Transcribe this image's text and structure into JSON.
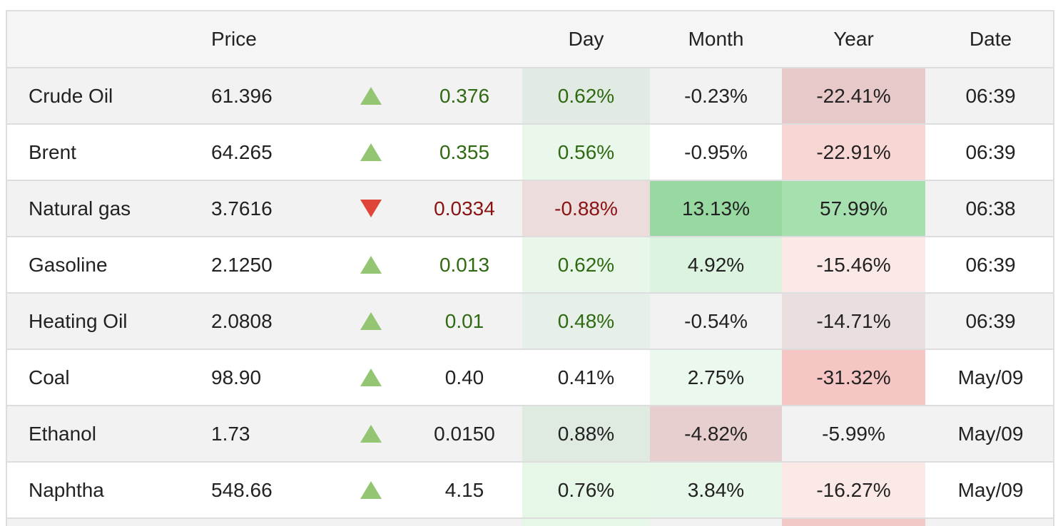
{
  "header": {
    "name": "",
    "price": "Price",
    "arrow": "",
    "change": "",
    "day": "Day",
    "month": "Month",
    "year": "Year",
    "date": "Date"
  },
  "rows": [
    {
      "name": "Crude Oil",
      "price": "61.396",
      "direction": "up",
      "change": "0.376",
      "day": "0.62%",
      "month": "-0.23%",
      "year": "-22.41%",
      "date": "06:39",
      "change_color": "#2f6a12",
      "day_color": "#2f6a12",
      "day_bg": "#e1ebe3",
      "month_bg": "",
      "year_bg": "#e8c9c9"
    },
    {
      "name": "Brent",
      "price": "64.265",
      "direction": "up",
      "change": "0.355",
      "day": "0.56%",
      "month": "-0.95%",
      "year": "-22.91%",
      "date": "06:39",
      "change_color": "#2f6a12",
      "day_color": "#2f6a12",
      "day_bg": "#eaf8ec",
      "month_bg": "",
      "year_bg": "#f8d6d4"
    },
    {
      "name": "Natural gas",
      "price": "3.7616",
      "direction": "down",
      "change": "0.0334",
      "day": "-0.88%",
      "month": "13.13%",
      "year": "57.99%",
      "date": "06:38",
      "change_color": "#8b1212",
      "day_color": "#8b1212",
      "day_bg": "#ecdcdc",
      "month_bg": "#97d9a0",
      "year_bg": "#a6e0ae"
    },
    {
      "name": "Gasoline",
      "price": "2.1250",
      "direction": "up",
      "change": "0.013",
      "day": "0.62%",
      "month": "4.92%",
      "year": "-15.46%",
      "date": "06:39",
      "change_color": "#2f6a12",
      "day_color": "#2f6a12",
      "day_bg": "#e8f7ea",
      "month_bg": "#dcf3df",
      "year_bg": "#fbe9e8"
    },
    {
      "name": "Heating Oil",
      "price": "2.0808",
      "direction": "up",
      "change": "0.01",
      "day": "0.48%",
      "month": "-0.54%",
      "year": "-14.71%",
      "date": "06:39",
      "change_color": "#2f6a12",
      "day_color": "#2f6a12",
      "day_bg": "#e6efe8",
      "month_bg": "",
      "year_bg": "#eadfdf"
    },
    {
      "name": "Coal",
      "price": "98.90",
      "direction": "up",
      "change": "0.40",
      "day": "0.41%",
      "month": "2.75%",
      "year": "-31.32%",
      "date": "May/09",
      "change_color": "#222222",
      "day_color": "#222222",
      "day_bg": "",
      "month_bg": "#ebf8ed",
      "year_bg": "#f5c6c4"
    },
    {
      "name": "Ethanol",
      "price": "1.73",
      "direction": "up",
      "change": "0.0150",
      "day": "0.88%",
      "month": "-4.82%",
      "year": "-5.99%",
      "date": "May/09",
      "change_color": "#222222",
      "day_color": "#222222",
      "day_bg": "#dfeae1",
      "month_bg": "#e8cfcf",
      "year_bg": ""
    },
    {
      "name": "Naphtha",
      "price": "548.66",
      "direction": "up",
      "change": "4.15",
      "day": "0.76%",
      "month": "3.84%",
      "year": "-16.27%",
      "date": "May/09",
      "change_color": "#222222",
      "day_color": "#222222",
      "day_bg": "#e6f7e8",
      "month_bg": "#e7f7e9",
      "year_bg": "#fbe9e8"
    }
  ],
  "partial_row": {
    "day_bg": "#e6f7e8",
    "year_bg": "#f1c9c7"
  },
  "colors": {
    "up_arrow": "#93c572",
    "down_arrow": "#e0453a",
    "border": "#dddddd",
    "stripe": "#f2f2f2"
  }
}
